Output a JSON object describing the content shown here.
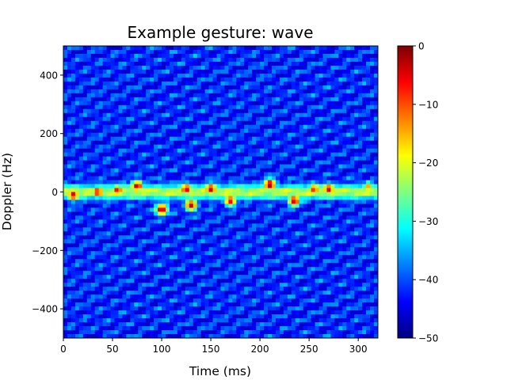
{
  "chart_data": {
    "type": "heatmap",
    "title": "Example gesture: wave",
    "xlabel": "Time (ms)",
    "ylabel": "Doppler (Hz)",
    "xlim": [
      0,
      320
    ],
    "ylim": [
      -500,
      500
    ],
    "xticks": [
      0,
      50,
      100,
      150,
      200,
      250,
      300
    ],
    "yticks": [
      -400,
      -200,
      0,
      200,
      400
    ],
    "xtick_labels": [
      "0",
      "50",
      "100",
      "150",
      "200",
      "250",
      "300"
    ],
    "ytick_labels": [
      "−400",
      "−200",
      "0",
      "200",
      "400"
    ],
    "colorbar": {
      "colormap": "jet",
      "range": [
        -50,
        0
      ],
      "ticks": [
        0,
        -10,
        -20,
        -30,
        -40,
        -50
      ],
      "tick_labels": [
        "0",
        "−10",
        "−20",
        "−30",
        "−40",
        "−50"
      ]
    },
    "background_level_db": -42,
    "signal_band": {
      "center_hz": 0,
      "halfwidth_hz": 40,
      "level_db": -22
    },
    "peaks": [
      {
        "t_ms": 10,
        "doppler_hz": -10,
        "level_db": -4
      },
      {
        "t_ms": 35,
        "doppler_hz": 0,
        "level_db": -5
      },
      {
        "t_ms": 55,
        "doppler_hz": 5,
        "level_db": -6
      },
      {
        "t_ms": 75,
        "doppler_hz": 20,
        "level_db": -3
      },
      {
        "t_ms": 100,
        "doppler_hz": -60,
        "level_db": -2
      },
      {
        "t_ms": 125,
        "doppler_hz": 10,
        "level_db": -4
      },
      {
        "t_ms": 130,
        "doppler_hz": -45,
        "level_db": -3
      },
      {
        "t_ms": 150,
        "doppler_hz": 10,
        "level_db": -3
      },
      {
        "t_ms": 170,
        "doppler_hz": -30,
        "level_db": -5
      },
      {
        "t_ms": 210,
        "doppler_hz": 25,
        "level_db": -1
      },
      {
        "t_ms": 235,
        "doppler_hz": -30,
        "level_db": -3
      },
      {
        "t_ms": 255,
        "doppler_hz": 10,
        "level_db": -7
      },
      {
        "t_ms": 270,
        "doppler_hz": 10,
        "level_db": -4
      },
      {
        "t_ms": 310,
        "doppler_hz": 20,
        "level_db": -15
      }
    ],
    "colors": {
      "jet": [
        "#00007f",
        "#0000ff",
        "#007fff",
        "#00ffff",
        "#7fff7f",
        "#ffff00",
        "#ff7f00",
        "#ff0000",
        "#7f0000"
      ]
    }
  }
}
